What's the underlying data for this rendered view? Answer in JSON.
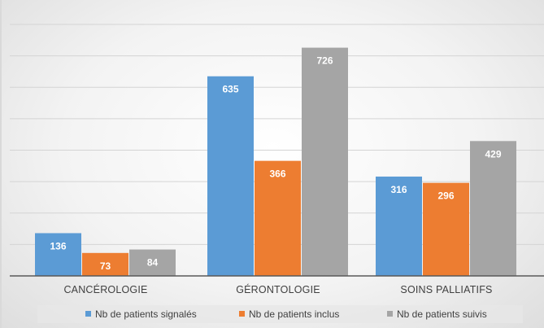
{
  "chart_data": {
    "type": "bar",
    "categories": [
      "CANCÉROLOGIE",
      "GÉRONTOLOGIE",
      "SOINS PALLIATIFS"
    ],
    "series": [
      {
        "name": "Nb de patients signalés",
        "values": [
          136,
          635,
          316
        ],
        "color": "#5b9bd5"
      },
      {
        "name": "Nb de patients inclus",
        "values": [
          73,
          366,
          296
        ],
        "color": "#ed7d31"
      },
      {
        "name": "Nb de patients suivis",
        "values": [
          84,
          726,
          429
        ],
        "color": "#a5a5a5"
      }
    ],
    "ylim": [
      0,
      800
    ],
    "grid": true,
    "legend_position": "bottom",
    "data_labels": true
  }
}
